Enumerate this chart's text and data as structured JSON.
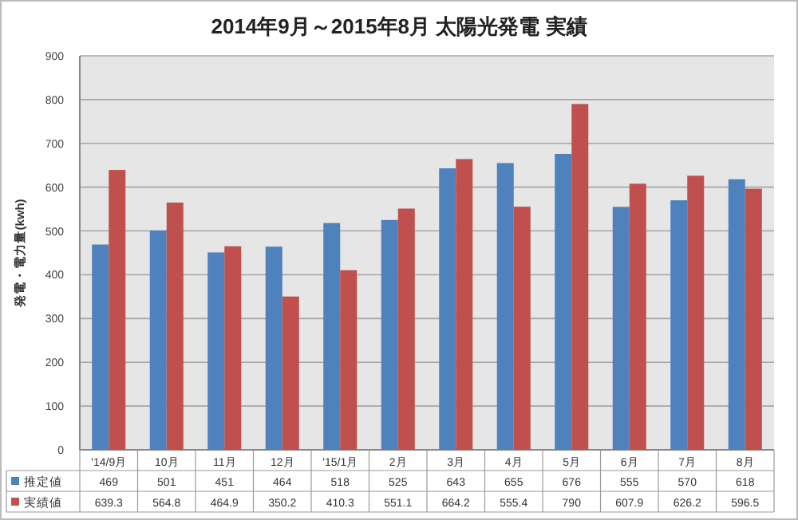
{
  "chart_data": {
    "type": "bar",
    "title": "2014年9月～2015年8月  太陽光発電  実績",
    "ylabel": "発電・電力量(kwh)",
    "categories": [
      "'14/9月",
      "10月",
      "11月",
      "12月",
      "'15/1月",
      "2月",
      "3月",
      "4月",
      "5月",
      "6月",
      "7月",
      "8月"
    ],
    "series": [
      {
        "name": "推定値",
        "color": "#4f81bd",
        "values": [
          469,
          501,
          451,
          464,
          518,
          525,
          643,
          655,
          676,
          555,
          570,
          618
        ]
      },
      {
        "name": "実績値",
        "color": "#c0504d",
        "values": [
          639.3,
          564.8,
          464.9,
          350.2,
          410.3,
          551.1,
          664.2,
          555.4,
          790,
          607.9,
          626.2,
          596.5
        ]
      }
    ],
    "ylim": [
      0,
      900
    ],
    "yticks": [
      0,
      100,
      200,
      300,
      400,
      500,
      600,
      700,
      800,
      900
    ],
    "grid": "y",
    "legend": "bottom",
    "data_labels": true
  }
}
